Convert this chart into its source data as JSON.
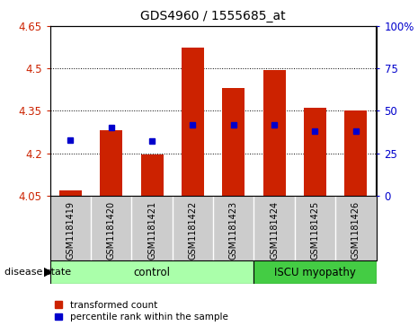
{
  "title": "GDS4960 / 1555685_at",
  "samples": [
    "GSM1181419",
    "GSM1181420",
    "GSM1181421",
    "GSM1181422",
    "GSM1181423",
    "GSM1181424",
    "GSM1181425",
    "GSM1181426"
  ],
  "transformed_counts": [
    4.07,
    4.28,
    4.195,
    4.575,
    4.43,
    4.495,
    4.36,
    4.35
  ],
  "percentile_ranks": [
    33,
    40,
    32,
    42,
    42,
    42,
    38,
    38
  ],
  "ylim": [
    4.05,
    4.65
  ],
  "yticks": [
    4.05,
    4.2,
    4.35,
    4.5,
    4.65
  ],
  "right_yticks": [
    0,
    25,
    50,
    75,
    100
  ],
  "right_ylim": [
    0,
    100
  ],
  "bar_color": "#cc2200",
  "dot_color": "#0000cc",
  "groups": [
    {
      "label": "control",
      "indices": [
        0,
        1,
        2,
        3,
        4
      ],
      "color": "#aaffaa"
    },
    {
      "label": "ISCU myopathy",
      "indices": [
        5,
        6,
        7
      ],
      "color": "#44cc44"
    }
  ],
  "sample_label_bg": "#cccccc",
  "disease_state_label": "disease state",
  "legend_items": [
    {
      "color": "#cc2200",
      "label": "transformed count",
      "marker": "square"
    },
    {
      "color": "#0000cc",
      "label": "percentile rank within the sample",
      "marker": "square"
    }
  ]
}
